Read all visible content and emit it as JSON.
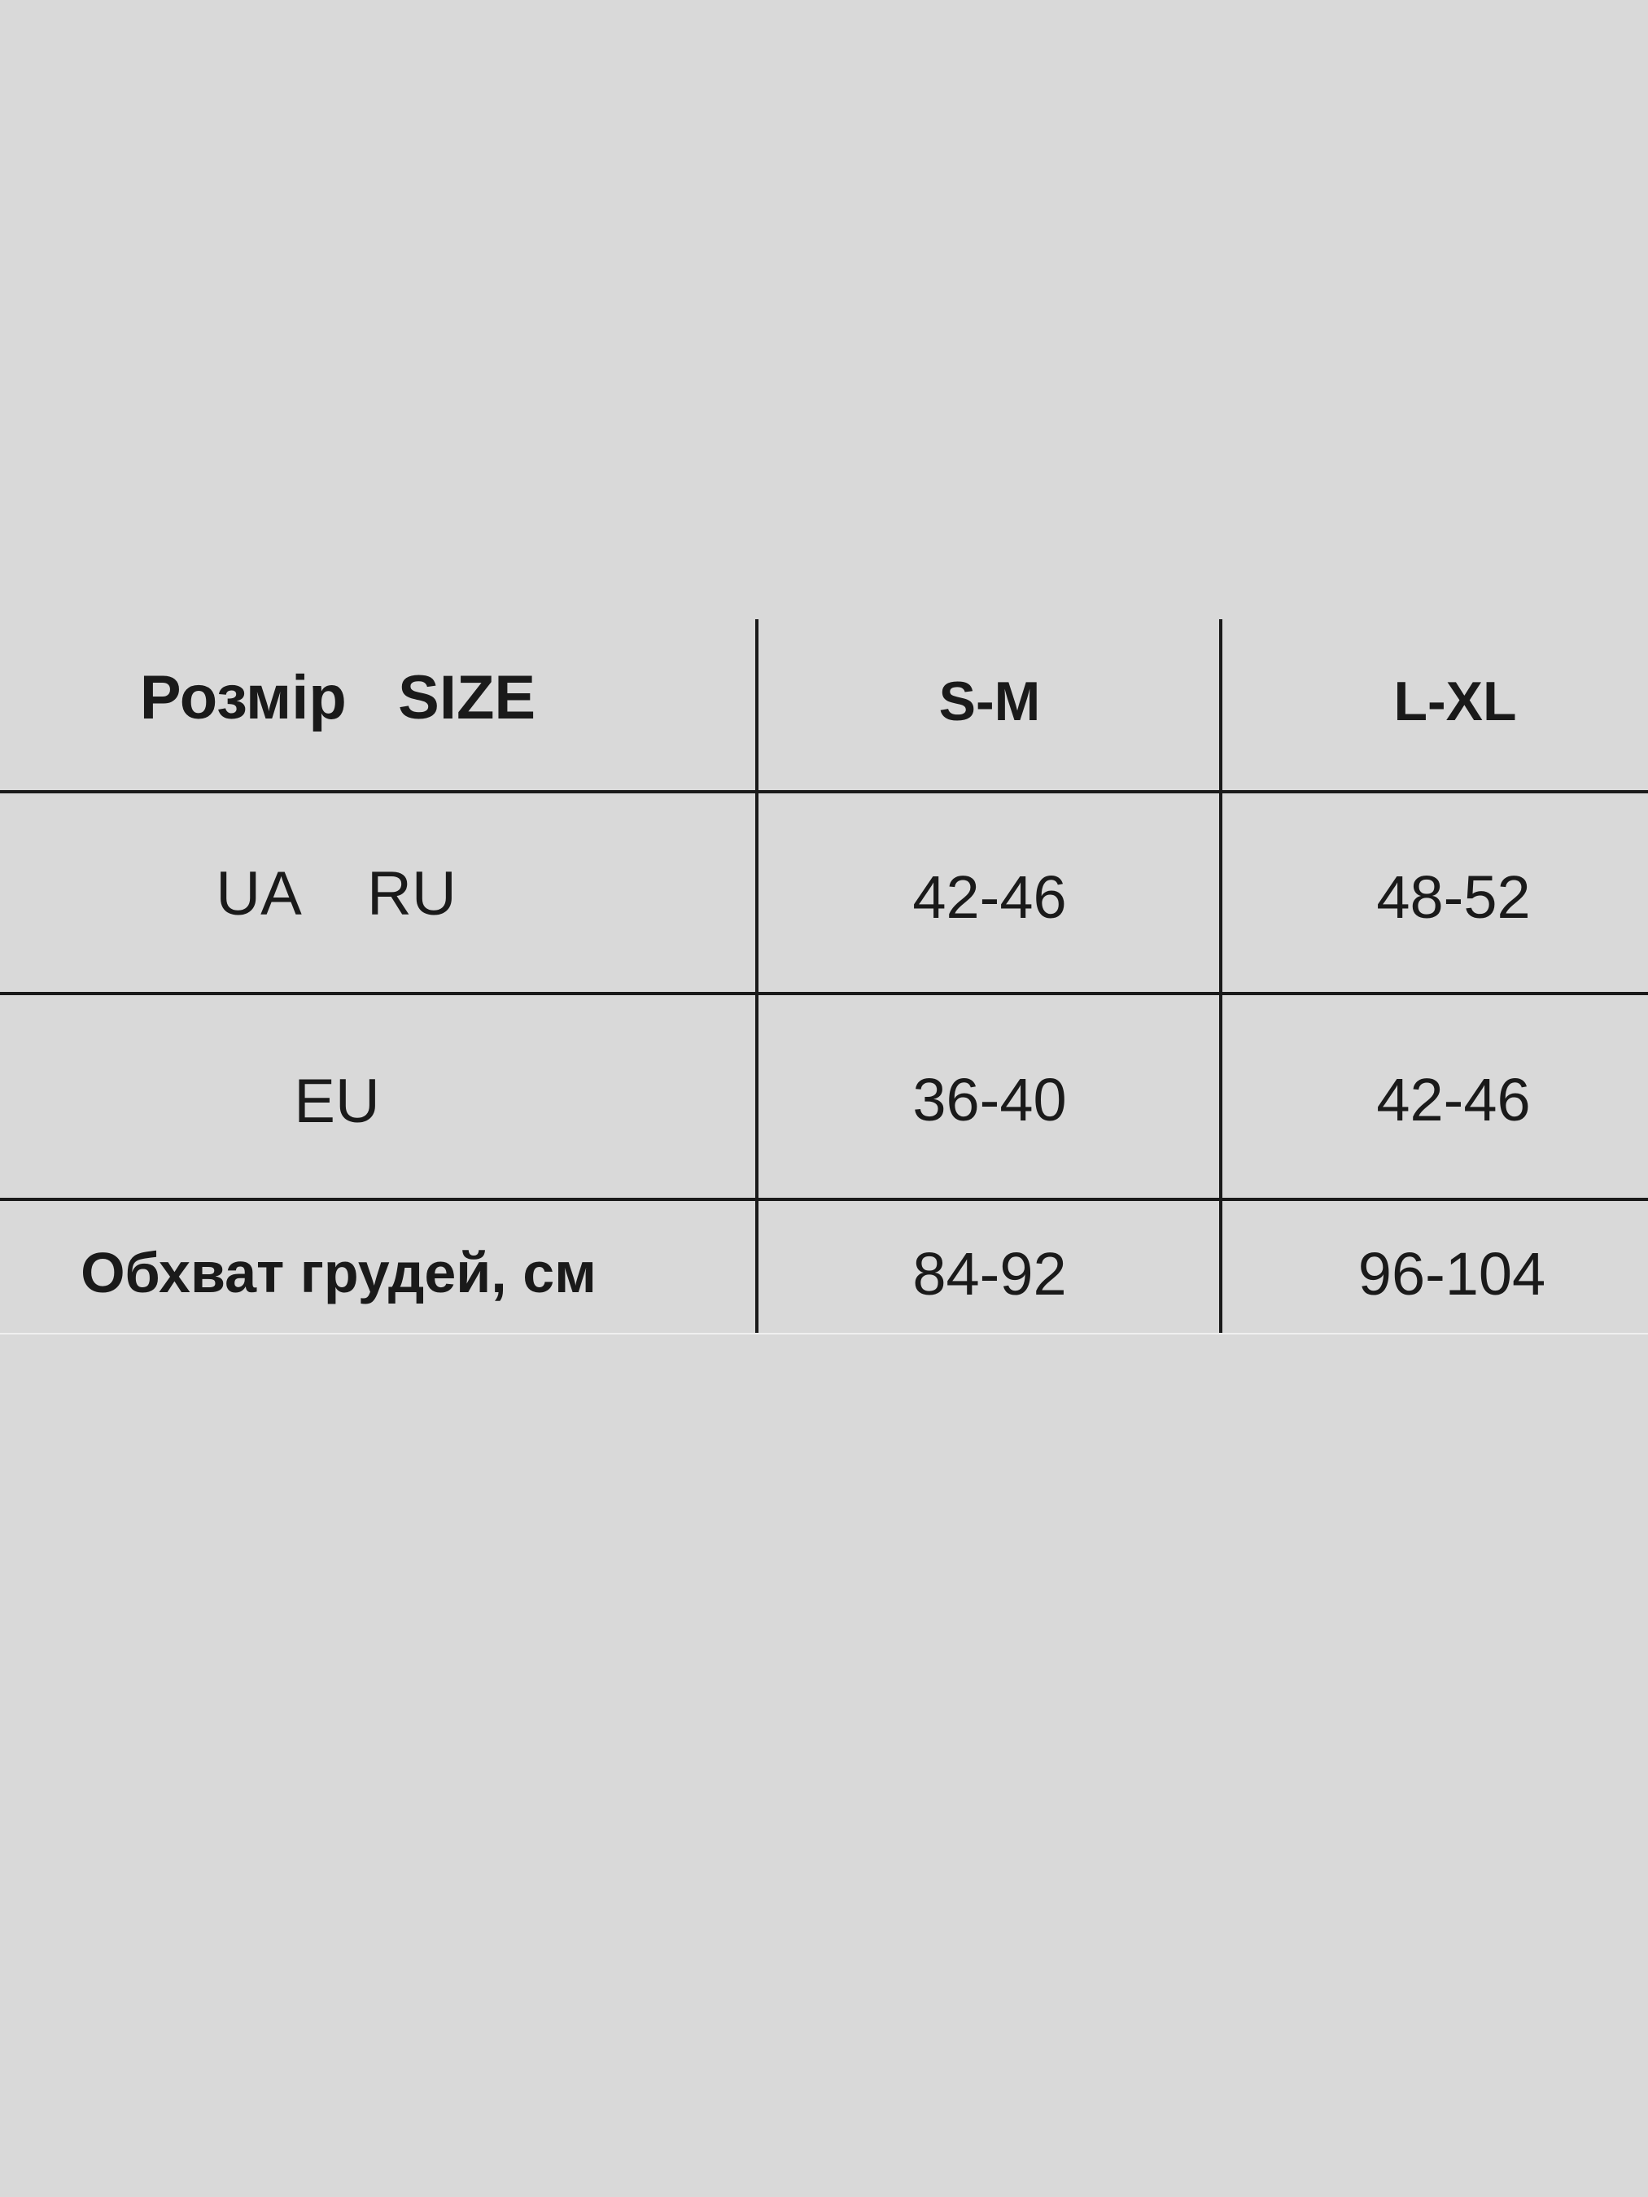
{
  "size_table": {
    "header": [
      "Розмір   SIZE",
      "S-M",
      "L-XL"
    ],
    "rows": [
      [
        "UA    RU",
        "42-46",
        "48-52"
      ],
      [
        "EU",
        "36-40",
        "42-46"
      ],
      [
        "Обхват грудей, см",
        "84-92",
        "96-104"
      ]
    ]
  }
}
